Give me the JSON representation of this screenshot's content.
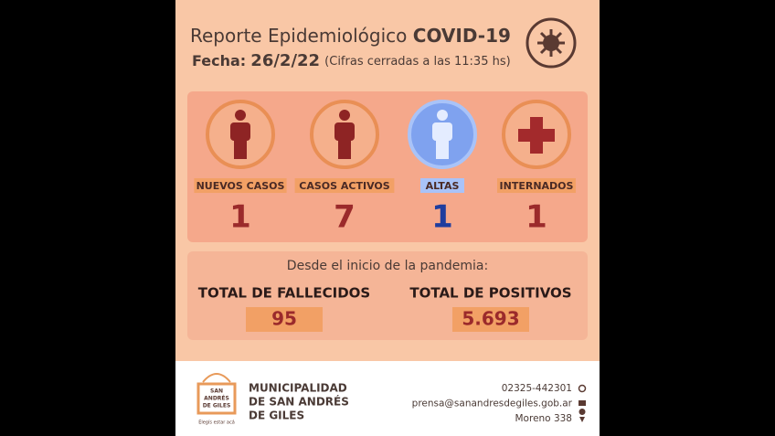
{
  "header": {
    "title": "Reporte Epidemiológico",
    "title_bold": "COVID-19",
    "date_label": "Fecha:",
    "date": "26/2/22",
    "note": "(Cifras cerradas a las 11:35 hs)"
  },
  "stats": [
    {
      "label": "NUEVOS CASOS",
      "value": "1"
    },
    {
      "label": "CASOS ACTIVOS",
      "value": "7"
    },
    {
      "label": "ALTAS",
      "value": "1"
    },
    {
      "label": "INTERNADOS",
      "value": "1"
    }
  ],
  "pandemic": {
    "heading": "Desde el inicio de la pandemia:",
    "totals": [
      {
        "label": "TOTAL DE FALLECIDOS",
        "value": "95"
      },
      {
        "label": "TOTAL DE POSITIVOS",
        "value": "5.693"
      }
    ]
  },
  "footer": {
    "logo": [
      "SAN",
      "ANDRÉS",
      "DE GILES"
    ],
    "slogan": "Elegís estar acá",
    "org": [
      "MUNICIPALIDAD",
      "DE SAN ANDRÉS",
      "DE GILES"
    ],
    "contacts": [
      "02325-442301",
      "prensa@sanandresdegiles.gob.ar",
      "Moreno 338"
    ]
  }
}
